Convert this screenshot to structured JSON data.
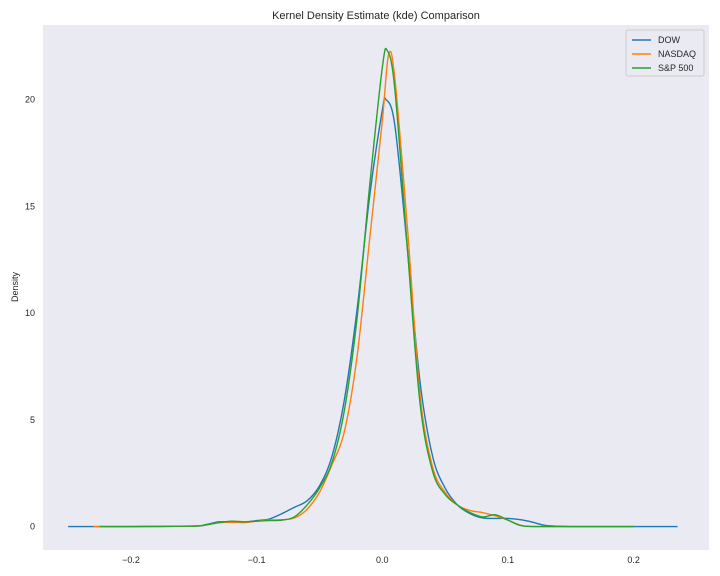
{
  "chart_data": {
    "type": "line",
    "title": "Kernel Density Estimate (kde) Comparison",
    "xlabel": "",
    "ylabel": "Density",
    "xlim": [
      -0.27,
      0.26
    ],
    "ylim": [
      -1.1,
      23.5
    ],
    "x_ticks": [
      -0.2,
      -0.1,
      0.0,
      0.1,
      0.2
    ],
    "x_tick_labels": [
      "−0.2",
      "−0.1",
      "0.0",
      "0.1",
      "0.2"
    ],
    "y_ticks": [
      0,
      5,
      10,
      15,
      20
    ],
    "y_tick_labels": [
      "0",
      "5",
      "10",
      "15",
      "20"
    ],
    "grid": false,
    "background": "#eaeaf2",
    "legend_position": "top-right",
    "series": [
      {
        "name": "DOW",
        "color": "#1f77b4",
        "points": [
          [
            -0.25,
            0.0
          ],
          [
            -0.2,
            0.0
          ],
          [
            -0.15,
            0.02
          ],
          [
            -0.14,
            0.1
          ],
          [
            -0.13,
            0.22
          ],
          [
            -0.12,
            0.22
          ],
          [
            -0.11,
            0.2
          ],
          [
            -0.1,
            0.28
          ],
          [
            -0.09,
            0.35
          ],
          [
            -0.08,
            0.6
          ],
          [
            -0.07,
            0.9
          ],
          [
            -0.06,
            1.2
          ],
          [
            -0.05,
            1.9
          ],
          [
            -0.04,
            3.3
          ],
          [
            -0.03,
            6.0
          ],
          [
            -0.02,
            10.2
          ],
          [
            -0.01,
            15.5
          ],
          [
            0.0,
            19.5
          ],
          [
            0.003,
            20.0
          ],
          [
            0.01,
            18.8
          ],
          [
            0.02,
            13.0
          ],
          [
            0.03,
            6.8
          ],
          [
            0.04,
            3.3
          ],
          [
            0.05,
            1.8
          ],
          [
            0.06,
            1.0
          ],
          [
            0.07,
            0.6
          ],
          [
            0.08,
            0.4
          ],
          [
            0.09,
            0.38
          ],
          [
            0.1,
            0.38
          ],
          [
            0.11,
            0.32
          ],
          [
            0.12,
            0.2
          ],
          [
            0.13,
            0.05
          ],
          [
            0.15,
            0.0
          ],
          [
            0.2,
            0.0
          ],
          [
            0.235,
            0.0
          ]
        ]
      },
      {
        "name": "NASDAQ",
        "color": "#ff7f0e",
        "points": [
          [
            -0.23,
            0.0
          ],
          [
            -0.2,
            0.0
          ],
          [
            -0.15,
            0.02
          ],
          [
            -0.14,
            0.08
          ],
          [
            -0.13,
            0.18
          ],
          [
            -0.12,
            0.2
          ],
          [
            -0.11,
            0.18
          ],
          [
            -0.1,
            0.25
          ],
          [
            -0.09,
            0.3
          ],
          [
            -0.08,
            0.32
          ],
          [
            -0.07,
            0.4
          ],
          [
            -0.06,
            0.8
          ],
          [
            -0.05,
            1.6
          ],
          [
            -0.04,
            2.9
          ],
          [
            -0.03,
            4.5
          ],
          [
            -0.02,
            8.0
          ],
          [
            -0.01,
            13.5
          ],
          [
            0.0,
            19.0
          ],
          [
            0.005,
            22.1
          ],
          [
            0.01,
            21.0
          ],
          [
            0.02,
            14.0
          ],
          [
            0.03,
            6.2
          ],
          [
            0.04,
            2.8
          ],
          [
            0.05,
            1.6
          ],
          [
            0.06,
            1.0
          ],
          [
            0.07,
            0.75
          ],
          [
            0.08,
            0.65
          ],
          [
            0.09,
            0.5
          ],
          [
            0.1,
            0.3
          ],
          [
            0.11,
            0.06
          ],
          [
            0.12,
            0.0
          ],
          [
            0.15,
            0.0
          ],
          [
            0.2,
            0.0
          ]
        ]
      },
      {
        "name": "S&P 500",
        "color": "#2ca02c",
        "points": [
          [
            -0.225,
            0.0
          ],
          [
            -0.2,
            0.0
          ],
          [
            -0.15,
            0.02
          ],
          [
            -0.14,
            0.08
          ],
          [
            -0.13,
            0.18
          ],
          [
            -0.12,
            0.25
          ],
          [
            -0.11,
            0.22
          ],
          [
            -0.1,
            0.25
          ],
          [
            -0.09,
            0.28
          ],
          [
            -0.08,
            0.3
          ],
          [
            -0.07,
            0.45
          ],
          [
            -0.06,
            1.0
          ],
          [
            -0.05,
            1.8
          ],
          [
            -0.04,
            3.0
          ],
          [
            -0.03,
            5.5
          ],
          [
            -0.02,
            9.8
          ],
          [
            -0.01,
            16.0
          ],
          [
            0.0,
            21.5
          ],
          [
            0.004,
            22.3
          ],
          [
            0.01,
            20.5
          ],
          [
            0.02,
            13.0
          ],
          [
            0.03,
            5.8
          ],
          [
            0.04,
            2.6
          ],
          [
            0.05,
            1.5
          ],
          [
            0.06,
            1.0
          ],
          [
            0.07,
            0.65
          ],
          [
            0.08,
            0.45
          ],
          [
            0.09,
            0.55
          ],
          [
            0.1,
            0.3
          ],
          [
            0.11,
            0.05
          ],
          [
            0.12,
            0.0
          ],
          [
            0.15,
            0.0
          ],
          [
            0.2,
            0.0
          ]
        ]
      }
    ]
  }
}
